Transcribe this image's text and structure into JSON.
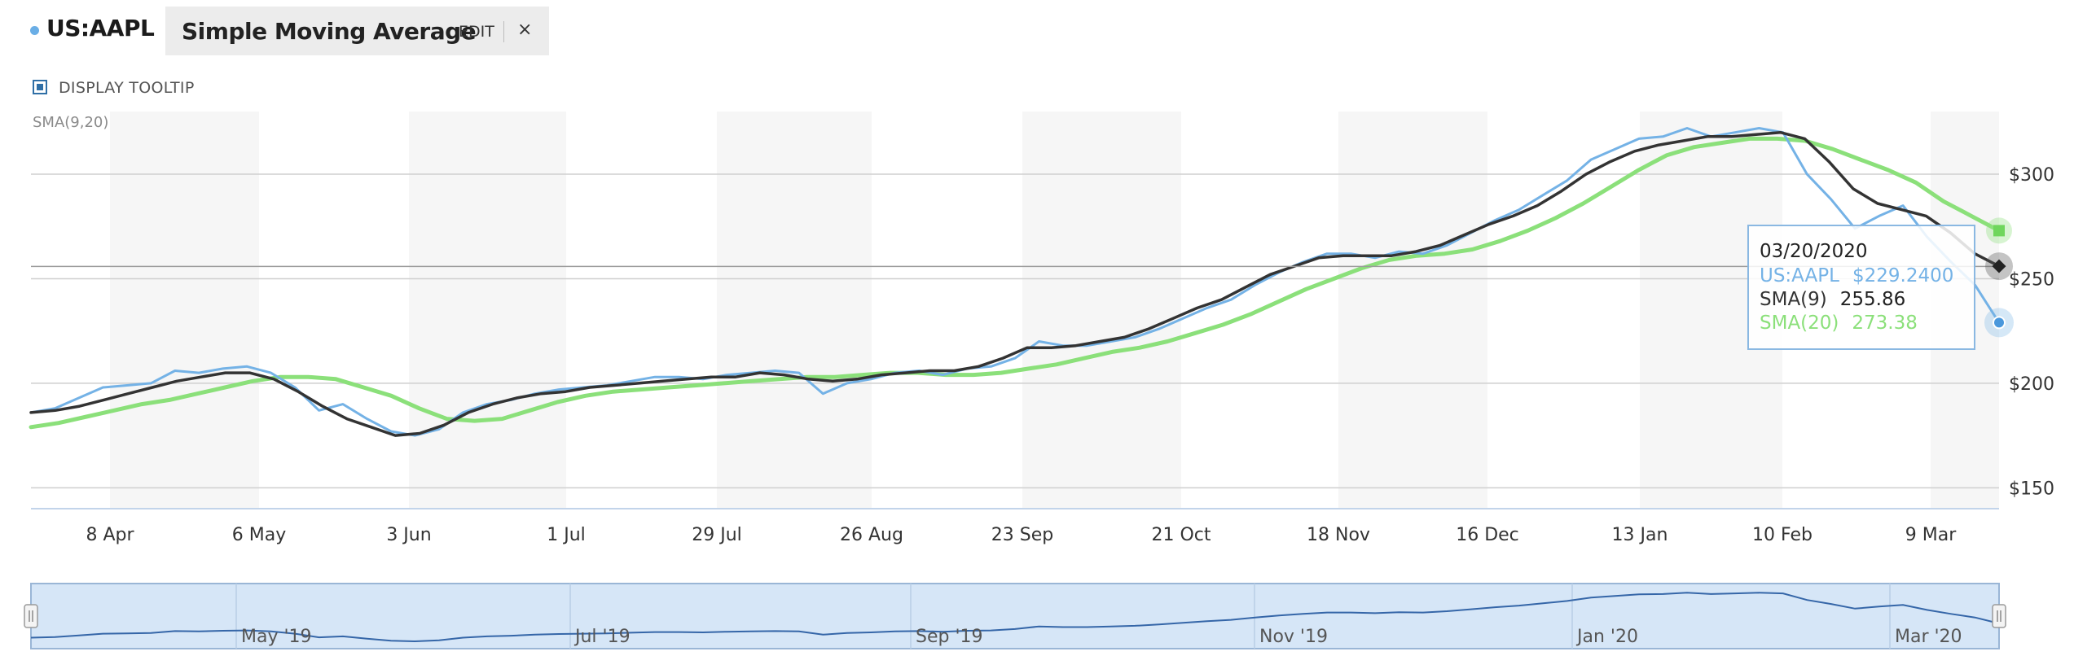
{
  "header": {
    "ticker": "US:AAPL",
    "study_name": "Simple Moving Average",
    "edit_label": "EDIT",
    "close_label": "×"
  },
  "tooltip_toggle": {
    "label": "DISPLAY TOOLTIP",
    "checked": true
  },
  "study_label": "SMA(9,20)",
  "colors": {
    "price": "#74b2e6",
    "sma9": "#333333",
    "sma20": "#8be07a",
    "band": "#f6f6f6",
    "navigator_fill": "#d6e6f7",
    "navigator_line": "#3566a8",
    "navigator_border": "#9ab6d6"
  },
  "icons": {
    "close": "close-icon",
    "checkbox": "checkbox-icon",
    "handle": "drag-handle-icon"
  },
  "chart_data": {
    "type": "line",
    "title": "",
    "xlabel": "",
    "ylabel": "",
    "x_ticks": [
      "8 Apr",
      "6 May",
      "3 Jun",
      "1 Jul",
      "29 Jul",
      "26 Aug",
      "23 Sep",
      "21 Oct",
      "18 Nov",
      "16 Dec",
      "13 Jan",
      "10 Feb",
      "9 Mar"
    ],
    "y_ticks": [
      "$150",
      "$200",
      "$250",
      "$300"
    ],
    "ylim": [
      150,
      300
    ],
    "grid": true,
    "series": [
      {
        "name": "US:AAPL",
        "color": "#74b2e6",
        "values": [
          186,
          188,
          193,
          198,
          199,
          200,
          206,
          205,
          207,
          208,
          205,
          198,
          187,
          190,
          183,
          177,
          175,
          178,
          186,
          190,
          192,
          195,
          197,
          198,
          199,
          201,
          203,
          203,
          202,
          204,
          205,
          206,
          205,
          195,
          200,
          202,
          205,
          206,
          204,
          207,
          208,
          212,
          220,
          218,
          218,
          220,
          222,
          226,
          231,
          236,
          240,
          247,
          253,
          258,
          262,
          262,
          260,
          263,
          262,
          266,
          272,
          278,
          283,
          290,
          297,
          307,
          312,
          317,
          318,
          322,
          318,
          320,
          322,
          320,
          300,
          288,
          274,
          280,
          285,
          270,
          258,
          247,
          229
        ]
      },
      {
        "name": "SMA(9)",
        "color": "#333333",
        "values": [
          186,
          187,
          189,
          192,
          195,
          198,
          201,
          203,
          205,
          205,
          202,
          196,
          189,
          183,
          179,
          175,
          176,
          180,
          186,
          190,
          193,
          195,
          196,
          198,
          199,
          200,
          201,
          202,
          203,
          203,
          205,
          204,
          202,
          201,
          202,
          204,
          205,
          206,
          206,
          208,
          212,
          217,
          217,
          218,
          220,
          222,
          226,
          231,
          236,
          240,
          246,
          252,
          256,
          260,
          261,
          261,
          261,
          263,
          266,
          271,
          276,
          280,
          285,
          292,
          300,
          306,
          311,
          314,
          316,
          318,
          318,
          319,
          320,
          317,
          306,
          293,
          286,
          283,
          280,
          272,
          262,
          256
        ]
      },
      {
        "name": "SMA(20)",
        "color": "#8be07a",
        "values": [
          179,
          181,
          184,
          187,
          190,
          192,
          195,
          198,
          201,
          203,
          203,
          202,
          198,
          194,
          188,
          183,
          182,
          183,
          187,
          191,
          194,
          196,
          197,
          198,
          199,
          200,
          201,
          202,
          203,
          203,
          204,
          205,
          205,
          204,
          204,
          205,
          207,
          209,
          212,
          215,
          217,
          220,
          224,
          228,
          233,
          239,
          245,
          250,
          255,
          259,
          261,
          262,
          264,
          268,
          273,
          279,
          286,
          294,
          302,
          309,
          313,
          315,
          317,
          317,
          316,
          312,
          307,
          302,
          296,
          287,
          280,
          273
        ]
      }
    ],
    "tooltip": {
      "date": "03/20/2020",
      "rows": [
        {
          "label": "US:AAPL",
          "value": "$229.2400",
          "color": "#74b2e6"
        },
        {
          "label": "SMA(9)",
          "value": "255.86",
          "color": "#333333"
        },
        {
          "label": "SMA(20)",
          "value": "273.38",
          "color": "#8be07a"
        }
      ]
    },
    "navigator": {
      "labels": [
        "May '19",
        "Jul '19",
        "Sep '19",
        "Nov '19",
        "Jan '20",
        "Mar '20"
      ]
    }
  }
}
